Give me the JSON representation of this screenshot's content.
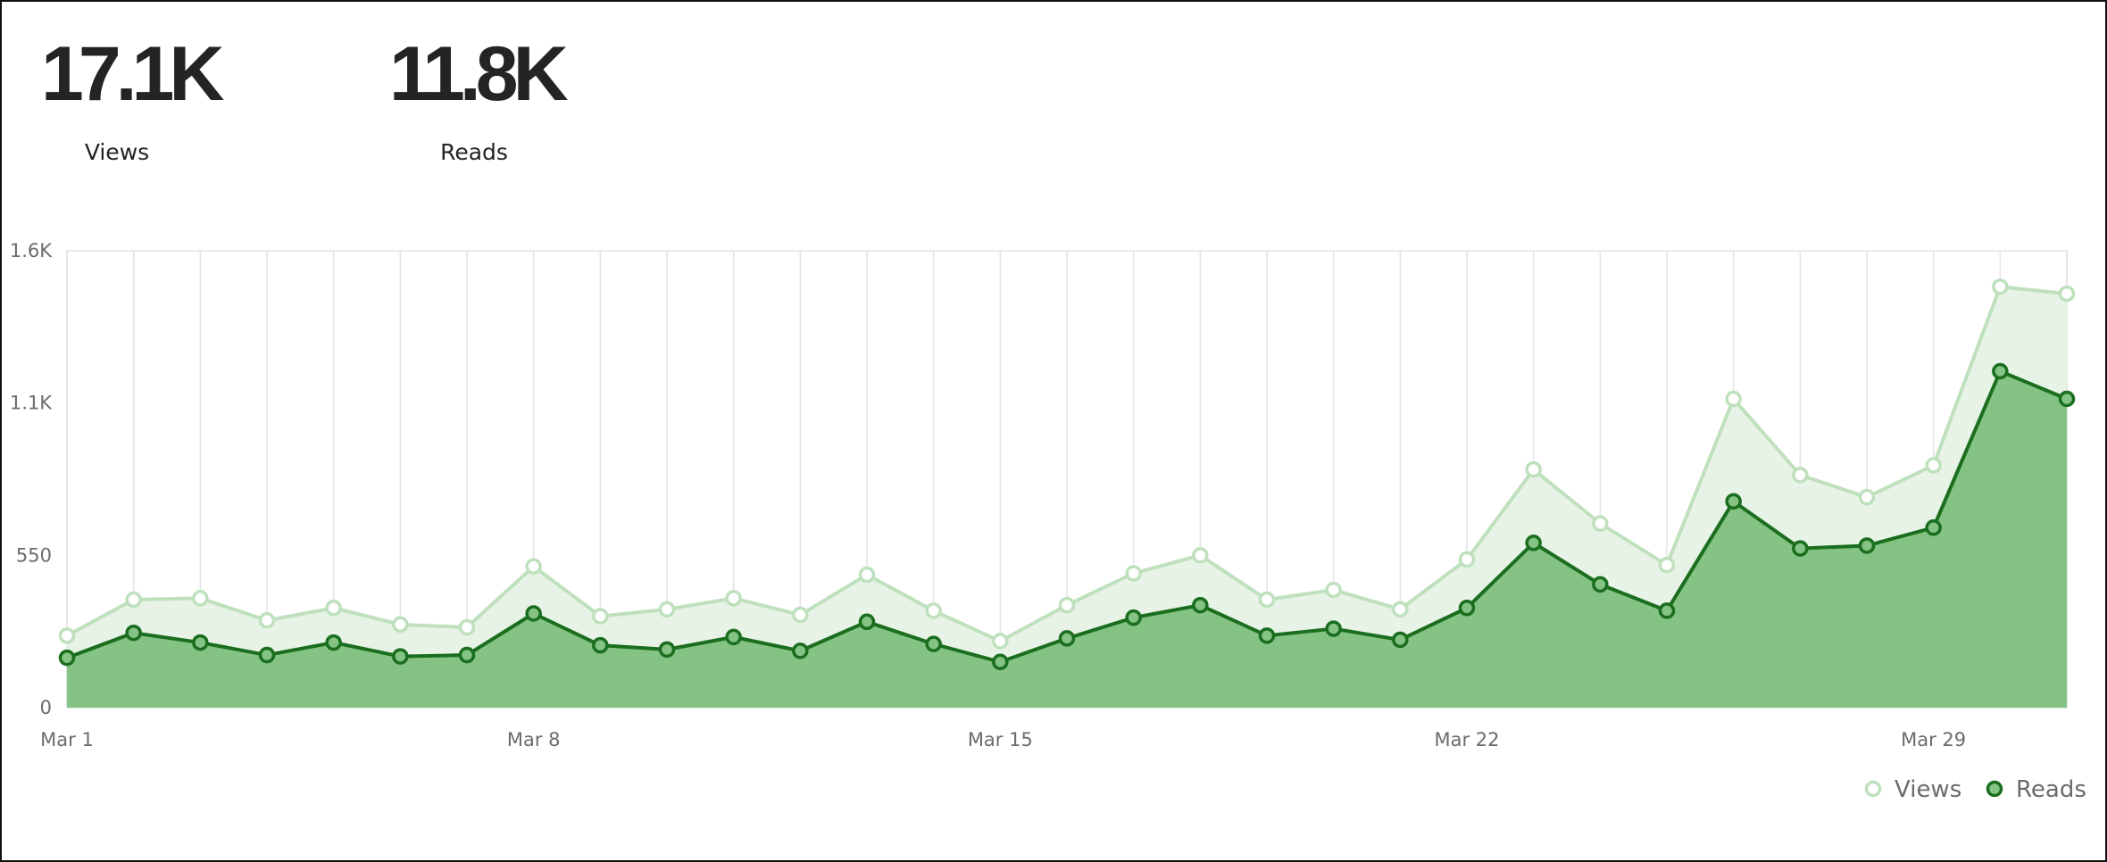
{
  "summary": {
    "views_value": "17.1K",
    "views_label": "Views",
    "reads_value": "11.8K",
    "reads_label": "Reads"
  },
  "colors": {
    "views_line": "#bfe0bd",
    "views_fill": "#e8f3e7",
    "reads_line": "#1a6e1e",
    "reads_fill": "#84c383",
    "grid": "#e3e3e3",
    "axis_text": "#6b6b6b"
  },
  "chart_data": {
    "type": "area",
    "x": [
      "Mar 1",
      "Mar 2",
      "Mar 3",
      "Mar 4",
      "Mar 5",
      "Mar 6",
      "Mar 7",
      "Mar 8",
      "Mar 9",
      "Mar 10",
      "Mar 11",
      "Mar 12",
      "Mar 13",
      "Mar 14",
      "Mar 15",
      "Mar 16",
      "Mar 17",
      "Mar 18",
      "Mar 19",
      "Mar 20",
      "Mar 21",
      "Mar 22",
      "Mar 23",
      "Mar 24",
      "Mar 25",
      "Mar 26",
      "Mar 27",
      "Mar 28",
      "Mar 29",
      "Mar 30",
      "Mar 31"
    ],
    "series": [
      {
        "name": "Views",
        "values": [
          260,
          390,
          395,
          315,
          360,
          300,
          290,
          510,
          330,
          355,
          395,
          335,
          480,
          350,
          240,
          370,
          485,
          550,
          390,
          425,
          355,
          535,
          860,
          665,
          515,
          1115,
          840,
          760,
          875,
          1520,
          1495
        ]
      },
      {
        "name": "Reads",
        "values": [
          180,
          270,
          235,
          190,
          235,
          185,
          190,
          340,
          225,
          210,
          255,
          205,
          310,
          230,
          165,
          250,
          325,
          370,
          260,
          285,
          245,
          360,
          595,
          445,
          350,
          745,
          575,
          585,
          650,
          1215,
          1115
        ]
      }
    ],
    "x_ticks": [
      "Mar 1",
      "Mar 8",
      "Mar 15",
      "Mar 22",
      "Mar 29"
    ],
    "y_ticks": [
      "0",
      "550",
      "1.1K",
      "1.6K"
    ],
    "y_tick_values": [
      0,
      550,
      1100,
      1650
    ],
    "ylim": [
      0,
      1650
    ],
    "grid": "vertical",
    "legend": {
      "position": "bottom-right",
      "items": [
        "Views",
        "Reads"
      ]
    }
  }
}
